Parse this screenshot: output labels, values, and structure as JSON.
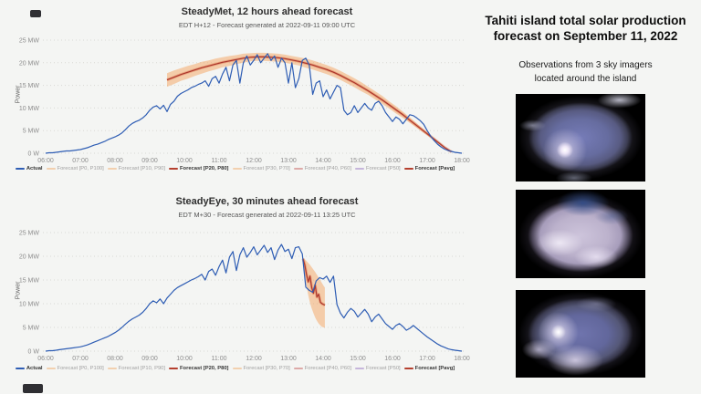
{
  "page": {
    "background": "#f4f5f3"
  },
  "right_panel": {
    "title_line1": "Tahiti island total solar production",
    "title_line2": "forecast on September 11, 2022",
    "subtitle_line1": "Observations from 3 sky imagers",
    "subtitle_line2": "located around the island",
    "sky_images": [
      {
        "appearance": "mostly clear purple-blue sky, bright sun lower left of center, cloud fringe at edges"
      },
      {
        "appearance": "overcast white-lavender cloud deck with small blue sky patch at top"
      },
      {
        "appearance": "partly cloudy, sun glow at left, blue-purple sky at right, clouds lower half"
      }
    ]
  },
  "chart_data": [
    {
      "type": "line",
      "title": "SteadyMet, 12 hours ahead forecast",
      "subtitle": "EDT H+12 - Forecast generated at 2022-09-11 09:00 UTC",
      "ylabel": "Power",
      "xlim": [
        6,
        18
      ],
      "ylim": [
        0,
        25
      ],
      "x_ticks": [
        "06:00",
        "07:00",
        "08:00",
        "09:00",
        "10:00",
        "11:00",
        "12:00",
        "13:00",
        "14:00",
        "15:00",
        "16:00",
        "17:00",
        "18:00"
      ],
      "y_ticks": [
        "0 W",
        "5 MW",
        "10 MW",
        "15 MW",
        "20 MW",
        "25 MW"
      ],
      "grid": true,
      "legend_position": "bottom",
      "legend": [
        {
          "label": "Actual",
          "color": "#2e5db4",
          "active": true
        },
        {
          "label": "Forecast [P0, P100]",
          "color": "#f0a35e",
          "active": false
        },
        {
          "label": "Forecast [P10, P90]",
          "color": "#f0a35e",
          "active": false
        },
        {
          "label": "Forecast [P20, P80]",
          "color": "#b5402f",
          "active": true
        },
        {
          "label": "Forecast [P30, P70]",
          "color": "#f0a35e",
          "active": false
        },
        {
          "label": "Forecast [P40, P60]",
          "color": "#c0504d",
          "active": false
        },
        {
          "label": "Forecast [P50]",
          "color": "#8e6bbf",
          "active": false
        },
        {
          "label": "Forecast [Pavg]",
          "color": "#b5402f",
          "active": true
        }
      ],
      "series": [
        {
          "name": "Forecast [P20, P80]",
          "kind": "band",
          "color": "#f3a35f",
          "opacity": 0.5,
          "x": [
            9.5,
            9.7,
            9.9,
            10.1,
            10.3,
            10.5,
            10.7,
            10.9,
            11.1,
            11.3,
            11.5,
            11.7,
            11.9,
            12.1,
            12.3,
            12.5,
            12.7,
            12.9,
            13.1,
            13.3,
            13.5,
            13.7,
            13.9,
            14.1,
            14.3,
            14.5,
            14.7,
            14.9,
            15.1,
            15.3,
            15.5,
            15.7,
            15.9,
            16.1,
            16.3,
            16.5,
            16.7,
            16.9,
            17.1,
            17.3,
            17.5,
            17.7
          ],
          "upper": [
            17.7,
            18.3,
            18.8,
            19.3,
            19.7,
            20.2,
            20.5,
            20.9,
            21.2,
            21.5,
            21.7,
            22,
            22.1,
            22.2,
            22.2,
            22.1,
            22,
            21.8,
            21.5,
            21.2,
            20.9,
            20.5,
            20,
            19.5,
            18.9,
            18.2,
            17.4,
            16.6,
            15.7,
            14.7,
            13.7,
            12.7,
            11.5,
            10.4,
            9.2,
            7.9,
            6.6,
            5.3,
            4,
            2.7,
            1.4,
            0.4
          ],
          "lower": [
            14.7,
            15.3,
            16,
            16.5,
            17.1,
            17.6,
            18.1,
            18.5,
            19,
            19.3,
            19.7,
            20,
            20.3,
            20.4,
            20.4,
            20.3,
            20.2,
            20,
            19.7,
            19.4,
            18.9,
            18.5,
            18,
            17.5,
            16.9,
            16.2,
            15.4,
            14.6,
            13.7,
            12.9,
            11.9,
            10.9,
            9.9,
            8.8,
            7.8,
            6.7,
            5.6,
            4.5,
            3.4,
            2.3,
            1.2,
            0.2
          ]
        },
        {
          "name": "Forecast [Pavg]",
          "kind": "line",
          "color": "#ab352c",
          "halo": "#e07a50",
          "width": 1.2,
          "x": [
            9.5,
            9.7,
            9.9,
            10.1,
            10.3,
            10.5,
            10.7,
            10.9,
            11.1,
            11.3,
            11.5,
            11.7,
            11.9,
            12.1,
            12.3,
            12.5,
            12.7,
            12.9,
            13.1,
            13.3,
            13.5,
            13.7,
            13.9,
            14.1,
            14.3,
            14.5,
            14.7,
            14.9,
            15.1,
            15.3,
            15.5,
            15.7,
            15.9,
            16.1,
            16.3,
            16.5,
            16.7,
            16.9,
            17.1,
            17.3,
            17.5,
            17.7
          ],
          "y": [
            16.2,
            16.8,
            17.4,
            17.9,
            18.4,
            18.9,
            19.3,
            19.7,
            20.1,
            20.4,
            20.7,
            21,
            21.2,
            21.3,
            21.3,
            21.2,
            21.1,
            20.9,
            20.6,
            20.3,
            19.9,
            19.5,
            19,
            18.5,
            17.9,
            17.2,
            16.4,
            15.6,
            14.7,
            13.8,
            12.8,
            11.8,
            10.7,
            9.6,
            8.5,
            7.3,
            6.1,
            4.9,
            3.7,
            2.5,
            1.3,
            0.3
          ]
        },
        {
          "name": "Actual",
          "kind": "line",
          "color": "#2e5db4",
          "width": 1.2,
          "x_start": 6,
          "x_step": 0.1,
          "y": [
            0,
            0.1,
            0.1,
            0.2,
            0.3,
            0.4,
            0.5,
            0.5,
            0.6,
            0.7,
            0.8,
            1,
            1.2,
            1.5,
            1.8,
            2,
            2.3,
            2.6,
            3,
            3.3,
            3.6,
            4,
            4.5,
            5.2,
            6,
            6.6,
            7,
            7.3,
            7.8,
            8.5,
            9.5,
            10.2,
            10.5,
            9.8,
            10.6,
            9.2,
            10.8,
            11.5,
            12.6,
            13.2,
            13.6,
            14,
            14.5,
            14.8,
            15.2,
            15.5,
            16,
            14.8,
            16.5,
            17,
            15.5,
            17.5,
            19,
            16,
            19.5,
            20.5,
            15.5,
            20,
            21.5,
            19.5,
            20.5,
            21.8,
            20,
            21,
            22,
            20.5,
            21.5,
            19,
            21,
            20,
            15.5,
            20,
            14.5,
            16.5,
            20.5,
            21,
            19.5,
            13,
            15.5,
            16,
            12.5,
            14,
            12,
            13.5,
            15,
            14.5,
            9.5,
            8.5,
            9,
            10.5,
            9,
            10,
            11,
            10,
            9.5,
            11,
            11.5,
            10.5,
            9,
            8,
            7,
            8,
            7.5,
            6.5,
            7.5,
            8.5,
            8.3,
            7.8,
            7.2,
            6.4,
            5,
            3.8,
            2.8,
            2,
            1.4,
            0.9,
            0.6,
            0.4,
            0.2,
            0.1,
            0
          ]
        }
      ]
    },
    {
      "type": "line",
      "title": "SteadyEye, 30 minutes ahead forecast",
      "subtitle": "EDT M+30 - Forecast generated at 2022-09-11 13:25 UTC",
      "ylabel": "Power",
      "xlim": [
        6,
        18
      ],
      "ylim": [
        0,
        25
      ],
      "x_ticks": [
        "06:00",
        "07:00",
        "08:00",
        "09:00",
        "10:00",
        "11:00",
        "12:00",
        "13:00",
        "14:00",
        "15:00",
        "16:00",
        "17:00",
        "18:00"
      ],
      "y_ticks": [
        "0 W",
        "5 MW",
        "10 MW",
        "15 MW",
        "20 MW",
        "25 MW"
      ],
      "grid": true,
      "legend_position": "bottom",
      "legend": [
        {
          "label": "Actual",
          "color": "#2e5db4",
          "active": true
        },
        {
          "label": "Forecast [P0, P100]",
          "color": "#f0a35e",
          "active": false
        },
        {
          "label": "Forecast [P10, P90]",
          "color": "#f0a35e",
          "active": false
        },
        {
          "label": "Forecast [P20, P80]",
          "color": "#b5402f",
          "active": true
        },
        {
          "label": "Forecast [P30, P70]",
          "color": "#f0a35e",
          "active": false
        },
        {
          "label": "Forecast [P40, P60]",
          "color": "#c0504d",
          "active": false
        },
        {
          "label": "Forecast [P50]",
          "color": "#8e6bbf",
          "active": false
        },
        {
          "label": "Forecast [Pavg]",
          "color": "#b5402f",
          "active": true
        }
      ],
      "series": [
        {
          "name": "Forecast [P20, P80]",
          "kind": "band",
          "color": "#f3a35f",
          "opacity": 0.5,
          "x": [
            13.42,
            13.47,
            13.52,
            13.57,
            13.62,
            13.67,
            13.72,
            13.77,
            13.82,
            13.87,
            13.92,
            13.97,
            14.02,
            14.05
          ],
          "upper": [
            19.7,
            19.4,
            19,
            18.6,
            18.2,
            17.7,
            17.2,
            16.7,
            16.1,
            15.5,
            14.9,
            14.3,
            13.7,
            13.4
          ],
          "lower": [
            19.3,
            16.2,
            13.8,
            11.8,
            10.2,
            9,
            8,
            7.1,
            6.4,
            5.8,
            5.4,
            5.1,
            5,
            4.9
          ]
        },
        {
          "name": "Forecast [Pavg]",
          "kind": "line",
          "color": "#ab352c",
          "halo": "#e07a50",
          "width": 1.2,
          "x": [
            13.42,
            13.47,
            13.52,
            13.57,
            13.62,
            13.67,
            13.72,
            13.77,
            13.82,
            13.87,
            13.92,
            13.97,
            14.02,
            14.05
          ],
          "y": [
            19.5,
            18.2,
            16.2,
            14.6,
            15.8,
            13.4,
            12.2,
            13.9,
            11.4,
            12,
            10.3,
            10,
            9.8,
            9.7
          ]
        },
        {
          "name": "Actual",
          "kind": "line",
          "color": "#2e5db4",
          "width": 1.2,
          "x_start": 6,
          "x_step": 0.1,
          "y": [
            0,
            0.1,
            0.1,
            0.2,
            0.3,
            0.4,
            0.5,
            0.6,
            0.7,
            0.8,
            0.9,
            1.1,
            1.3,
            1.6,
            1.9,
            2.2,
            2.5,
            2.8,
            3.1,
            3.5,
            3.9,
            4.4,
            5,
            5.7,
            6.3,
            6.8,
            7.2,
            7.6,
            8.2,
            9,
            10,
            10.6,
            10.2,
            11,
            10,
            11.2,
            12,
            12.8,
            13.4,
            13.8,
            14.2,
            14.6,
            15,
            15.3,
            15.7,
            16.2,
            15,
            16.8,
            17.3,
            16,
            17.8,
            19.2,
            16.5,
            19.8,
            21,
            17,
            20.3,
            21.8,
            19.8,
            20.8,
            22,
            20.3,
            21.3,
            22.3,
            20.8,
            21.8,
            19.3,
            21.3,
            22.5,
            21,
            21.5,
            19.5,
            21.8,
            22,
            20.5,
            13.5,
            12.8,
            12.4,
            14.8,
            15.5,
            15.2,
            15.8,
            14.5,
            15.8,
            9.8,
            8,
            7,
            8.2,
            9,
            8.4,
            7.2,
            8,
            8.8,
            7.8,
            6.2,
            7.2,
            7.8,
            6.8,
            5.8,
            5.2,
            4.6,
            5.4,
            5.8,
            5.2,
            4.4,
            4.8,
            5.4,
            4.8,
            4.2,
            3.6,
            3,
            2.5,
            2,
            1.5,
            1.1,
            0.8,
            0.5,
            0.3,
            0.2,
            0.1,
            0
          ]
        }
      ]
    }
  ]
}
